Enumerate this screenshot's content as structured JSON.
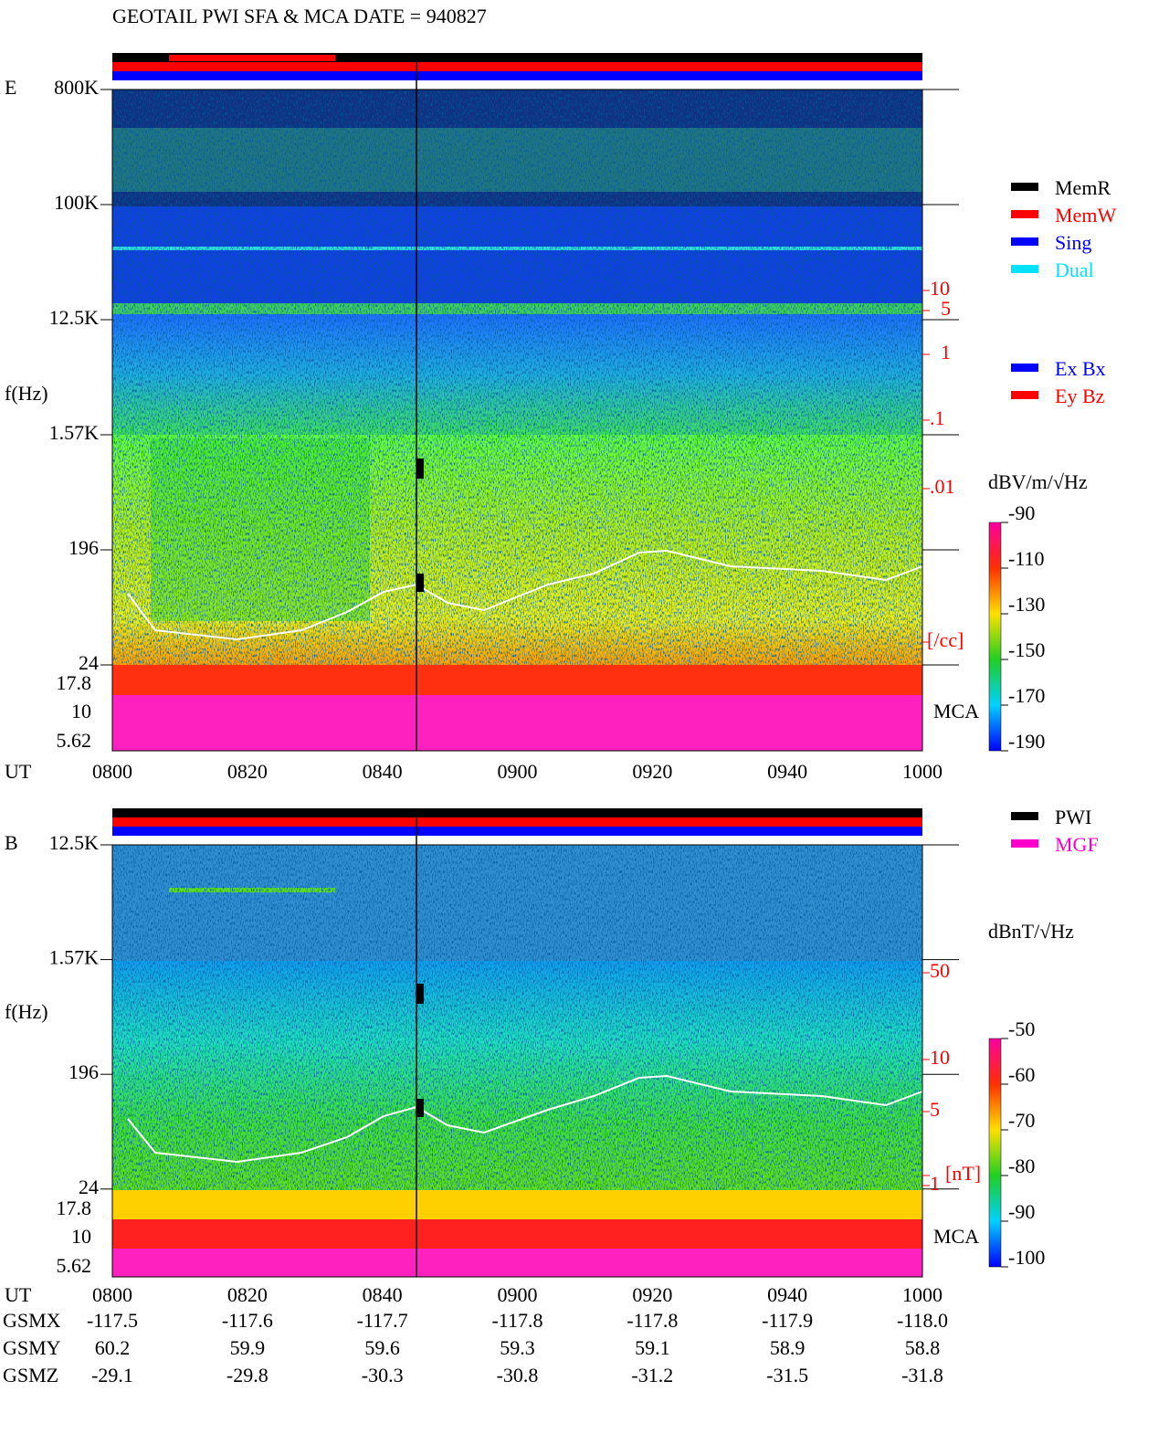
{
  "title": "GEOTAIL  PWI SFA & MCA   DATE = 940827",
  "panels": [
    {
      "label": "E",
      "ylabel": "f(Hz)",
      "yticks": [
        "800K",
        "100K",
        "12.5K",
        "1.57K",
        "196",
        "24"
      ],
      "mca_ticks": [
        "17.8",
        "10",
        "5.62"
      ],
      "mca_label": "MCA",
      "x_title": "UT",
      "xticks": [
        "0800",
        "0820",
        "0840",
        "0900",
        "0920",
        "0940",
        "1000"
      ],
      "right_scale": [
        "10",
        "5",
        "1",
        ".1",
        ".01",
        "[/cc]"
      ],
      "cbar_label": "dBV/m/√Hz",
      "clim": [
        -190,
        -90
      ],
      "cbar_ticks": [
        -90,
        -110,
        -130,
        -150,
        -170,
        -190
      ],
      "legends": [
        [
          {
            "name": "MemR",
            "color": "#000000"
          },
          {
            "name": "MemW",
            "color": "#ff0000"
          },
          {
            "name": "Sing",
            "color": "#0000ff"
          },
          {
            "name": "Dual",
            "color": "#00e0ff"
          }
        ],
        [
          {
            "name": "Ex Bx",
            "color": "#0000ff"
          },
          {
            "name": "Ey Bz",
            "color": "#ff0000"
          }
        ]
      ]
    },
    {
      "label": "B",
      "ylabel": "f(Hz)",
      "yticks": [
        "12.5K",
        "1.57K",
        "196",
        "24"
      ],
      "mca_ticks": [
        "17.8",
        "10",
        "5.62"
      ],
      "mca_label": "MCA",
      "x_title": "UT",
      "xticks": [
        "0800",
        "0820",
        "0840",
        "0900",
        "0920",
        "0940",
        "1000"
      ],
      "right_scale": [
        "50",
        "10",
        "5",
        "1",
        "[nT]"
      ],
      "cbar_label": "dBnT/√Hz",
      "clim": [
        -100,
        -50
      ],
      "cbar_ticks": [
        -50,
        -60,
        -70,
        -80,
        -90,
        -100
      ],
      "legends": [
        [
          {
            "name": "PWI",
            "color": "#000000"
          },
          {
            "name": "MGF",
            "color": "#ff00cc"
          }
        ]
      ]
    }
  ],
  "ephemeris": [
    {
      "name": "GSMX",
      "values": [
        "-117.5",
        "-117.6",
        "-117.7",
        "-117.8",
        "-117.8",
        "-117.9",
        "-118.0"
      ]
    },
    {
      "name": "GSMY",
      "values": [
        "60.2",
        "59.9",
        "59.6",
        "59.3",
        "59.1",
        "58.9",
        "58.8"
      ]
    },
    {
      "name": "GSMZ",
      "values": [
        "-29.1",
        "-29.8",
        "-30.3",
        "-30.8",
        "-31.2",
        "-31.5",
        "-31.8"
      ]
    }
  ]
}
